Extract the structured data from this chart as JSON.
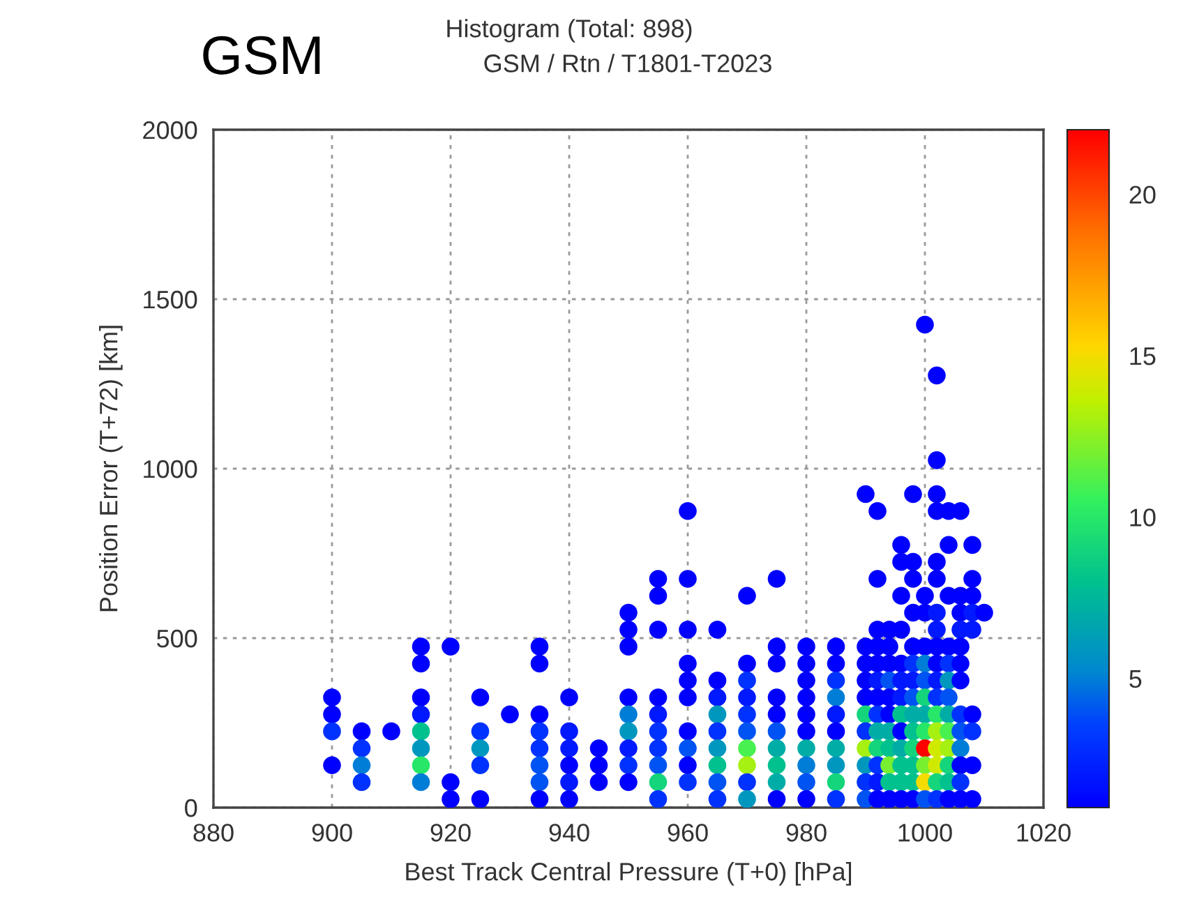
{
  "chart_data": {
    "type": "scatter",
    "title": "Histogram (Total: 898)",
    "subtitle": "GSM / Rtn / T1801-T2023",
    "annotations": [
      "GSM"
    ],
    "xlabel": "Best Track Central Pressure (T+0) [hPa]",
    "ylabel": "Position Error (T+72) [km]",
    "xlim": [
      880,
      1020
    ],
    "xticks": [
      880,
      900,
      920,
      940,
      960,
      980,
      1000,
      1020
    ],
    "ylim": [
      0,
      2000
    ],
    "yticks": [
      0,
      500,
      1000,
      1500,
      2000
    ],
    "clim": [
      1,
      22
    ],
    "cticks": [
      5,
      10,
      15,
      20
    ],
    "grid": true,
    "marker": "circle",
    "x": [
      900,
      900,
      900,
      900,
      905,
      905,
      905,
      905,
      910,
      915,
      915,
      915,
      915,
      915,
      915,
      915,
      915,
      920,
      920,
      920,
      925,
      925,
      925,
      925,
      925,
      930,
      935,
      935,
      935,
      935,
      935,
      935,
      935,
      935,
      940,
      940,
      940,
      940,
      940,
      940,
      945,
      945,
      945,
      950,
      950,
      950,
      950,
      950,
      950,
      950,
      950,
      950,
      955,
      955,
      955,
      955,
      955,
      955,
      955,
      955,
      955,
      955,
      960,
      960,
      960,
      960,
      960,
      960,
      960,
      960,
      960,
      960,
      965,
      965,
      965,
      965,
      965,
      965,
      965,
      965,
      965,
      970,
      970,
      970,
      970,
      970,
      970,
      970,
      970,
      970,
      970,
      975,
      975,
      975,
      975,
      975,
      975,
      975,
      975,
      975,
      975,
      980,
      980,
      980,
      980,
      980,
      980,
      980,
      980,
      980,
      980,
      985,
      985,
      985,
      985,
      985,
      985,
      985,
      985,
      985,
      985,
      990,
      990,
      990,
      990,
      990,
      990,
      990,
      990,
      990,
      990,
      990,
      992,
      992,
      992,
      992,
      992,
      992,
      992,
      992,
      992,
      992,
      992,
      992,
      992,
      994,
      994,
      994,
      994,
      994,
      994,
      994,
      994,
      994,
      994,
      994,
      996,
      996,
      996,
      996,
      996,
      996,
      996,
      996,
      996,
      996,
      996,
      996,
      996,
      998,
      998,
      998,
      998,
      998,
      998,
      998,
      998,
      998,
      998,
      998,
      998,
      998,
      998,
      1000,
      1000,
      1000,
      1000,
      1000,
      1000,
      1000,
      1000,
      1000,
      1000,
      1000,
      1000,
      1000,
      1002,
      1002,
      1002,
      1002,
      1002,
      1002,
      1002,
      1002,
      1002,
      1002,
      1002,
      1002,
      1002,
      1002,
      1002,
      1002,
      1002,
      1002,
      1004,
      1004,
      1004,
      1004,
      1004,
      1004,
      1004,
      1004,
      1004,
      1004,
      1004,
      1004,
      1004,
      1006,
      1006,
      1006,
      1006,
      1006,
      1006,
      1006,
      1006,
      1006,
      1006,
      1006,
      1006,
      1006,
      1008,
      1008,
      1008,
      1008,
      1008,
      1008,
      1008,
      1008,
      1008,
      1010
    ],
    "values": [
      325,
      275,
      225,
      125,
      225,
      175,
      125,
      75,
      225,
      475,
      425,
      325,
      275,
      225,
      175,
      125,
      75,
      475,
      75,
      25,
      325,
      225,
      175,
      125,
      25,
      275,
      475,
      425,
      275,
      225,
      175,
      125,
      75,
      25,
      325,
      225,
      175,
      125,
      75,
      25,
      175,
      125,
      75,
      575,
      525,
      475,
      325,
      275,
      225,
      175,
      125,
      75,
      675,
      625,
      525,
      325,
      275,
      225,
      175,
      125,
      75,
      25,
      875,
      675,
      525,
      425,
      375,
      325,
      225,
      175,
      125,
      75,
      525,
      375,
      325,
      275,
      225,
      175,
      125,
      75,
      25,
      625,
      425,
      375,
      325,
      275,
      225,
      175,
      125,
      75,
      25,
      675,
      475,
      425,
      325,
      275,
      225,
      175,
      125,
      75,
      25,
      475,
      425,
      375,
      325,
      275,
      225,
      175,
      125,
      75,
      25,
      475,
      425,
      375,
      325,
      275,
      225,
      175,
      125,
      75,
      25,
      925,
      475,
      425,
      375,
      325,
      275,
      225,
      175,
      125,
      75,
      25,
      875,
      675,
      525,
      475,
      425,
      375,
      325,
      275,
      225,
      175,
      125,
      75,
      25,
      525,
      475,
      425,
      375,
      325,
      275,
      225,
      175,
      125,
      75,
      25,
      775,
      725,
      625,
      525,
      425,
      375,
      325,
      275,
      225,
      175,
      125,
      75,
      25,
      925,
      725,
      675,
      575,
      475,
      425,
      375,
      325,
      275,
      225,
      175,
      125,
      75,
      25,
      1425,
      625,
      575,
      475,
      425,
      375,
      325,
      275,
      225,
      175,
      125,
      75,
      25,
      1275,
      1025,
      925,
      875,
      725,
      675,
      575,
      525,
      475,
      425,
      375,
      325,
      275,
      225,
      175,
      125,
      75,
      25,
      875,
      775,
      625,
      475,
      425,
      375,
      325,
      275,
      225,
      175,
      125,
      75,
      25,
      875,
      625,
      575,
      525,
      475,
      425,
      375,
      275,
      225,
      175,
      125,
      75,
      25,
      775,
      675,
      625,
      575,
      525,
      275,
      225,
      125,
      25,
      575
    ],
    "cvalues": [
      1,
      1,
      3,
      1,
      1,
      3,
      5,
      3,
      1,
      1,
      1,
      1,
      2,
      8,
      6,
      10,
      5,
      1,
      1,
      1,
      1,
      3,
      6,
      3,
      1,
      1,
      1,
      1,
      1,
      3,
      3,
      4,
      4,
      1,
      1,
      2,
      2,
      1,
      2,
      1,
      1,
      1,
      1,
      1,
      1,
      1,
      1,
      5,
      6,
      2,
      3,
      1,
      1,
      1,
      1,
      1,
      2,
      3,
      3,
      4,
      9,
      3,
      1,
      1,
      1,
      1,
      1,
      1,
      1,
      4,
      1,
      3,
      1,
      1,
      2,
      6,
      3,
      6,
      8,
      4,
      3,
      1,
      1,
      3,
      2,
      3,
      4,
      11,
      13,
      3,
      6,
      1,
      1,
      1,
      1,
      1,
      4,
      7,
      8,
      7,
      1,
      1,
      1,
      1,
      1,
      1,
      1,
      7,
      5,
      4,
      1,
      1,
      1,
      3,
      5,
      2,
      1,
      7,
      6,
      9,
      3,
      1,
      1,
      1,
      1,
      1,
      9,
      3,
      13,
      6,
      3,
      4,
      1,
      1,
      1,
      1,
      1,
      2,
      1,
      3,
      7,
      9,
      3,
      2,
      1,
      1,
      1,
      1,
      4,
      1,
      1,
      7,
      8,
      12,
      8,
      1,
      1,
      1,
      1,
      1,
      1,
      2,
      2,
      8,
      1,
      7,
      8,
      8,
      1,
      1,
      1,
      1,
      1,
      1,
      3,
      2,
      4,
      7,
      8,
      9,
      8,
      8,
      1,
      1,
      1,
      1,
      1,
      5,
      4,
      9,
      7,
      10,
      22,
      12,
      15,
      4,
      1,
      1,
      1,
      1,
      1,
      1,
      2,
      2,
      1,
      1,
      2,
      3,
      10,
      13,
      14,
      14,
      9,
      3,
      1,
      1,
      1,
      1,
      3,
      6,
      4,
      7,
      11,
      13,
      9,
      8,
      1,
      1,
      1,
      1,
      2,
      1,
      1,
      1,
      3,
      4,
      5,
      1,
      3,
      1,
      1,
      1,
      1,
      2,
      2,
      1,
      3,
      1,
      1,
      1
    ]
  }
}
